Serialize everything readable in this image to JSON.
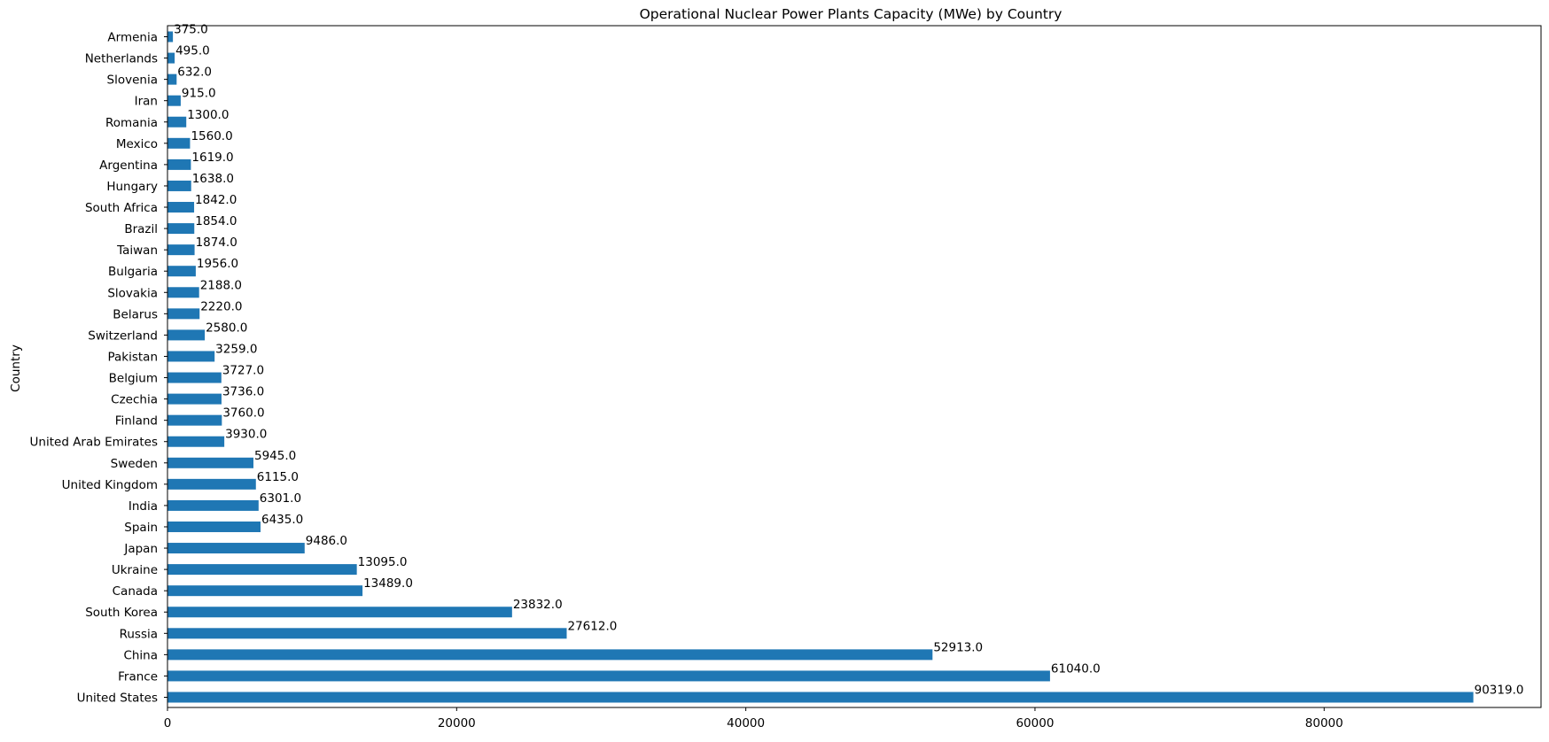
{
  "chart_data": {
    "type": "bar",
    "orientation": "horizontal",
    "title": "Operational Nuclear Power Plants Capacity (MWe) by Country",
    "xlabel": "",
    "ylabel": "Country",
    "xlim": [
      0,
      95000
    ],
    "x_ticks": [
      0,
      20000,
      40000,
      60000,
      80000
    ],
    "x_tick_labels": [
      "0",
      "20000",
      "40000",
      "60000",
      "80000"
    ],
    "grid": false,
    "bar_color": "#1f77b4",
    "categories": [
      "Armenia",
      "Netherlands",
      "Slovenia",
      "Iran",
      "Romania",
      "Mexico",
      "Argentina",
      "Hungary",
      "South Africa",
      "Brazil",
      "Taiwan",
      "Bulgaria",
      "Slovakia",
      "Belarus",
      "Switzerland",
      "Pakistan",
      "Belgium",
      "Czechia",
      "Finland",
      "United Arab Emirates",
      "Sweden",
      "United Kingdom",
      "India",
      "Spain",
      "Japan",
      "Ukraine",
      "Canada",
      "South Korea",
      "Russia",
      "China",
      "France",
      "United States"
    ],
    "values": [
      375.0,
      495.0,
      632.0,
      915.0,
      1300.0,
      1560.0,
      1619.0,
      1638.0,
      1842.0,
      1854.0,
      1874.0,
      1956.0,
      2188.0,
      2220.0,
      2580.0,
      3259.0,
      3727.0,
      3736.0,
      3760.0,
      3930.0,
      5945.0,
      6115.0,
      6301.0,
      6435.0,
      9486.0,
      13095.0,
      13489.0,
      23832.0,
      27612.0,
      52913.0,
      61040.0,
      90319.0
    ],
    "value_labels": [
      "375.0",
      "495.0",
      "632.0",
      "915.0",
      "1300.0",
      "1560.0",
      "1619.0",
      "1638.0",
      "1842.0",
      "1854.0",
      "1874.0",
      "1956.0",
      "2188.0",
      "2220.0",
      "2580.0",
      "3259.0",
      "3727.0",
      "3736.0",
      "3760.0",
      "3930.0",
      "5945.0",
      "6115.0",
      "6301.0",
      "6435.0",
      "9486.0",
      "13095.0",
      "13489.0",
      "23832.0",
      "27612.0",
      "52913.0",
      "61040.0",
      "90319.0"
    ]
  }
}
